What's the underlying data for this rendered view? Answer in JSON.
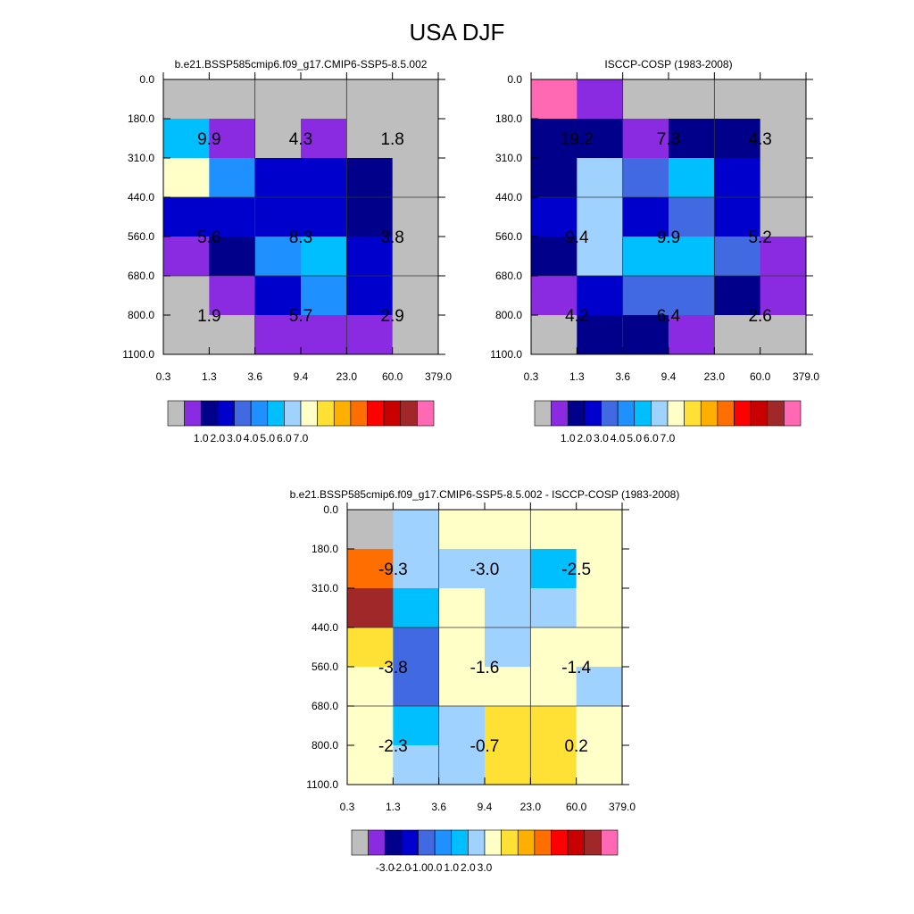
{
  "title": "USA DJF",
  "chart_data": [
    {
      "type": "heatmap",
      "title": "b.e21.BSSP585cmip6.f09_g17.CMIP6-SSP5-8.5.002",
      "x_ticks": [
        "0.3",
        "1.3",
        "3.6",
        "9.4",
        "23.0",
        "60.0",
        "379.0"
      ],
      "y_ticks": [
        "0.0",
        "180.0",
        "310.0",
        "440.0",
        "560.0",
        "680.0",
        "800.0",
        "1100.0"
      ],
      "cells": [
        [
          0,
          0,
          0,
          0,
          0,
          0
        ],
        [
          6,
          1,
          0,
          1,
          0,
          0
        ],
        [
          8,
          5,
          3,
          3,
          2,
          0
        ],
        [
          3,
          3,
          3,
          3,
          2,
          0
        ],
        [
          1,
          2,
          5,
          6,
          3,
          0
        ],
        [
          0,
          1,
          3,
          5,
          3,
          0
        ],
        [
          0,
          0,
          1,
          1,
          1,
          0
        ]
      ],
      "labels": [
        [
          "9.9",
          "4.3",
          "1.8"
        ],
        [
          "5.6",
          "8.3",
          "3.8"
        ],
        [
          "1.9",
          "5.7",
          "2.9"
        ]
      ],
      "colorbar_ticks": [
        "1.0",
        "2.0",
        "3.0",
        "4.0",
        "5.0",
        "6.0",
        "7.0"
      ]
    },
    {
      "type": "heatmap",
      "title": "ISCCP-COSP (1983-2008)",
      "x_ticks": [
        "0.3",
        "1.3",
        "3.6",
        "9.4",
        "23.0",
        "60.0",
        "379.0"
      ],
      "y_ticks": [
        "0.0",
        "180.0",
        "310.0",
        "440.0",
        "560.0",
        "680.0",
        "800.0",
        "1100.0"
      ],
      "cells": [
        [
          15,
          1,
          0,
          0,
          0,
          0
        ],
        [
          2,
          2,
          1,
          2,
          2,
          0
        ],
        [
          2,
          7,
          4,
          6,
          3,
          0
        ],
        [
          3,
          7,
          3,
          4,
          3,
          0
        ],
        [
          2,
          7,
          6,
          6,
          4,
          1
        ],
        [
          1,
          3,
          4,
          4,
          2,
          1
        ],
        [
          0,
          2,
          2,
          1,
          0,
          0
        ]
      ],
      "labels": [
        [
          "19.2",
          "7.3",
          "4.3"
        ],
        [
          "9.4",
          "9.9",
          "5.2"
        ],
        [
          "4.2",
          "6.4",
          "2.6"
        ]
      ],
      "colorbar_ticks": [
        "1.0",
        "2.0",
        "3.0",
        "4.0",
        "5.0",
        "6.0",
        "7.0"
      ]
    },
    {
      "type": "heatmap",
      "title": "b.e21.BSSP585cmip6.f09_g17.CMIP6-SSP5-8.5.002 - ISCCP-COSP (1983-2008)",
      "x_ticks": [
        "0.3",
        "1.3",
        "3.6",
        "9.4",
        "23.0",
        "60.0",
        "379.0"
      ],
      "y_ticks": [
        "0.0",
        "180.0",
        "310.0",
        "440.0",
        "560.0",
        "680.0",
        "800.0",
        "1100.0"
      ],
      "cells": [
        [
          0,
          7,
          8,
          8,
          8,
          8
        ],
        [
          11,
          7,
          7,
          7,
          6,
          8
        ],
        [
          14,
          6,
          8,
          7,
          7,
          8
        ],
        [
          9,
          4,
          8,
          7,
          8,
          8
        ],
        [
          8,
          4,
          8,
          8,
          8,
          7
        ],
        [
          8,
          6,
          7,
          9,
          9,
          8
        ],
        [
          8,
          7,
          7,
          9,
          9,
          8
        ]
      ],
      "labels": [
        [
          "-9.3",
          "-3.0",
          "-2.5"
        ],
        [
          "-3.8",
          "-1.6",
          "-1.4"
        ],
        [
          "-2.3",
          "-0.7",
          "0.2"
        ]
      ],
      "colorbar_ticks": [
        "-3.0",
        "-2.0",
        "-1.0",
        "0.0",
        "1.0",
        "2.0",
        "3.0"
      ]
    }
  ],
  "colors": {
    "palette": [
      "#bebebe",
      "#8a2be2",
      "#00008b",
      "#0000cd",
      "#4169e1",
      "#1e90ff",
      "#00bfff",
      "#a0d2ff",
      "#ffffc8",
      "#ffe135",
      "#ffaf00",
      "#ff6e00",
      "#ff0000",
      "#c80000",
      "#a02828",
      "#ff69b4"
    ]
  }
}
